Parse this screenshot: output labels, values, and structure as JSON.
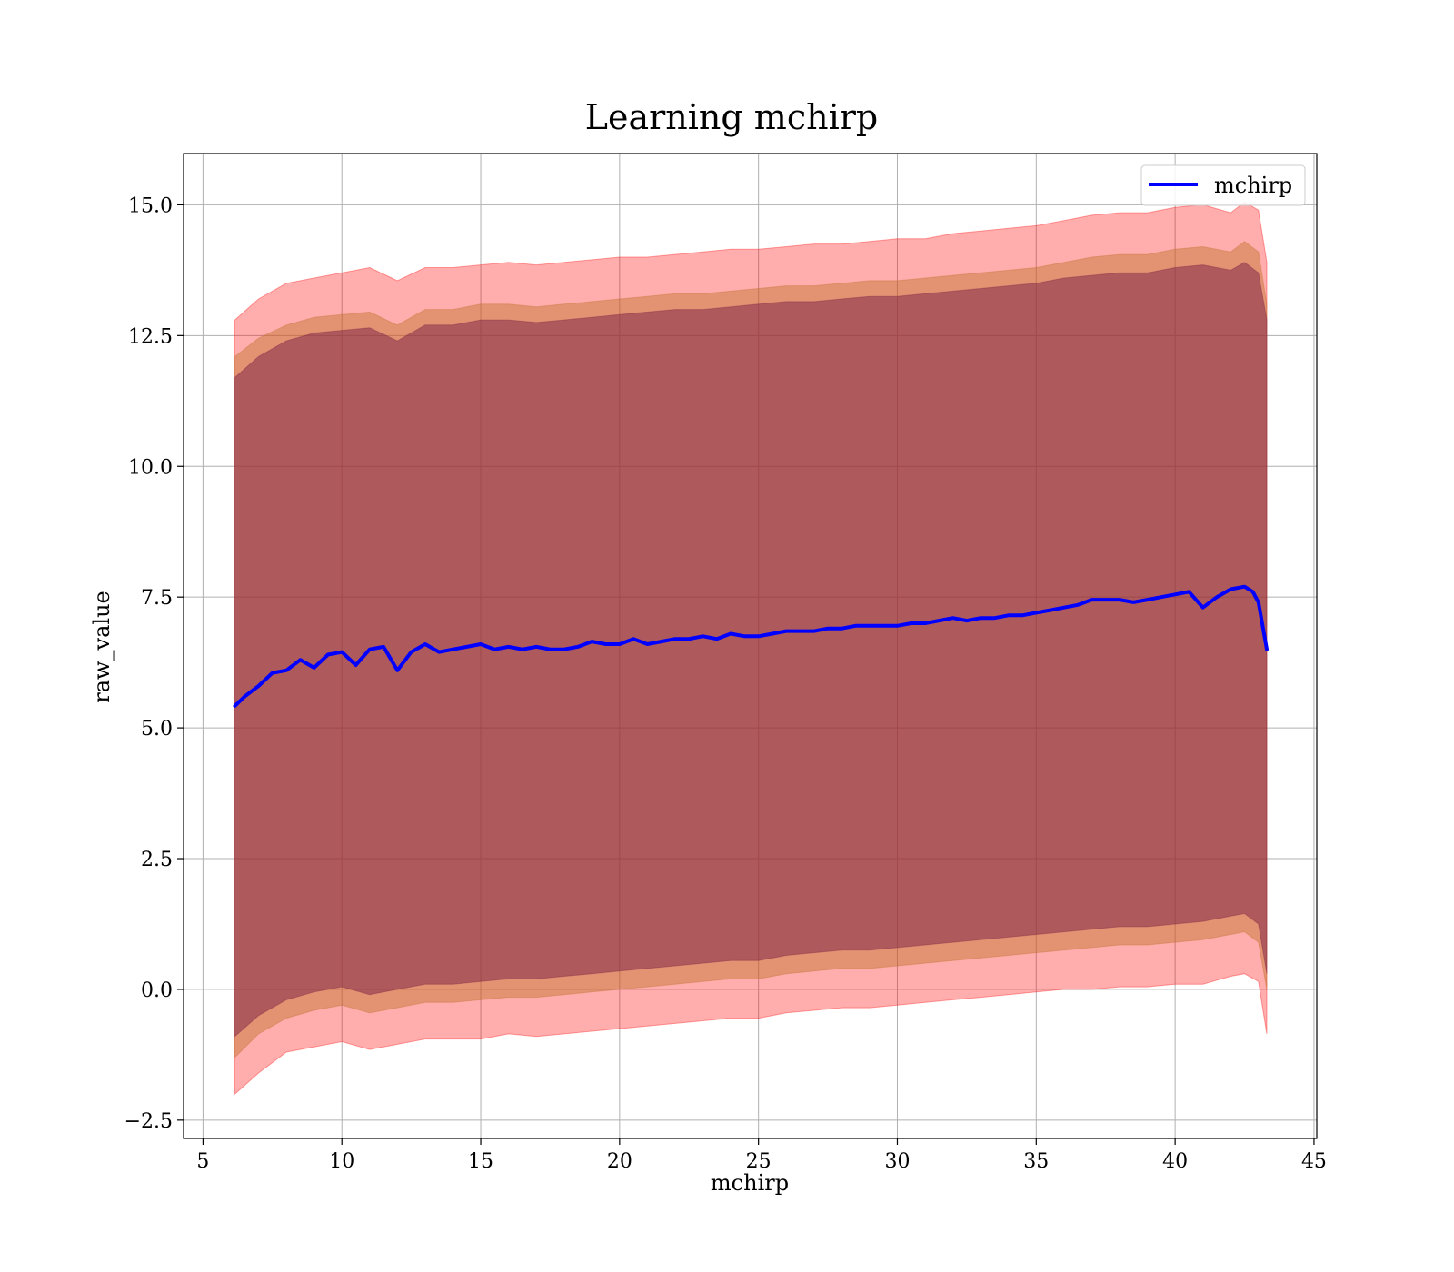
{
  "chart_data": {
    "type": "line",
    "title": "Learning mchirp",
    "xlabel": "mchirp",
    "ylabel": "raw_value",
    "xlim": [
      4.3,
      45.1
    ],
    "ylim": [
      -2.85,
      15.98
    ],
    "xticks": [
      5,
      10,
      15,
      20,
      25,
      30,
      35,
      40,
      45
    ],
    "yticks": [
      -2.5,
      0.0,
      2.5,
      5.0,
      7.5,
      10.0,
      12.5,
      15.0
    ],
    "xtick_labels": [
      "5",
      "10",
      "15",
      "20",
      "25",
      "30",
      "35",
      "40",
      "45"
    ],
    "ytick_labels": [
      "−2.5",
      "0.0",
      "2.5",
      "5.0",
      "7.5",
      "10.0",
      "12.5",
      "15.0"
    ],
    "grid": true,
    "legend": {
      "position": "top-right",
      "entries": [
        "mchirp"
      ]
    },
    "colors": {
      "line": "#0000ff",
      "band_outer": "#ff0000",
      "band_middle": "#c0702a",
      "band_inner": "#7a1f45",
      "grid": "#b0b0b0"
    },
    "series": [
      {
        "name": "mchirp",
        "x": [
          6.15,
          6.5,
          7.0,
          7.5,
          8.0,
          8.5,
          9.0,
          9.5,
          10.0,
          10.5,
          11.0,
          11.5,
          12.0,
          12.5,
          13.0,
          13.5,
          14.0,
          14.5,
          15.0,
          15.5,
          16.0,
          16.5,
          17.0,
          17.5,
          18.0,
          18.5,
          19.0,
          19.5,
          20.0,
          20.5,
          21.0,
          21.5,
          22.0,
          22.5,
          23.0,
          23.5,
          24.0,
          24.5,
          25.0,
          25.5,
          26.0,
          26.5,
          27.0,
          27.5,
          28.0,
          28.5,
          29.0,
          29.5,
          30.0,
          30.5,
          31.0,
          31.5,
          32.0,
          32.5,
          33.0,
          33.5,
          34.0,
          34.5,
          35.0,
          35.5,
          36.0,
          36.5,
          37.0,
          37.5,
          38.0,
          38.5,
          39.0,
          39.5,
          40.0,
          40.5,
          41.0,
          41.5,
          42.0,
          42.5,
          42.8,
          43.0,
          43.3
        ],
        "y": [
          5.42,
          5.6,
          5.8,
          6.05,
          6.1,
          6.3,
          6.15,
          6.4,
          6.45,
          6.2,
          6.5,
          6.55,
          6.1,
          6.45,
          6.6,
          6.45,
          6.5,
          6.55,
          6.6,
          6.5,
          6.55,
          6.5,
          6.55,
          6.5,
          6.5,
          6.55,
          6.65,
          6.6,
          6.6,
          6.7,
          6.6,
          6.65,
          6.7,
          6.7,
          6.75,
          6.7,
          6.8,
          6.75,
          6.75,
          6.8,
          6.85,
          6.85,
          6.85,
          6.9,
          6.9,
          6.95,
          6.95,
          6.95,
          6.95,
          7.0,
          7.0,
          7.05,
          7.1,
          7.05,
          7.1,
          7.1,
          7.15,
          7.15,
          7.2,
          7.25,
          7.3,
          7.35,
          7.45,
          7.45,
          7.45,
          7.4,
          7.45,
          7.5,
          7.55,
          7.6,
          7.3,
          7.5,
          7.65,
          7.7,
          7.6,
          7.4,
          6.5
        ]
      }
    ],
    "bands": [
      {
        "name": "outer",
        "x": [
          6.15,
          7.0,
          8.0,
          9.0,
          10.0,
          11.0,
          12.0,
          13.0,
          14.0,
          15.0,
          16.0,
          17.0,
          18.0,
          19.0,
          20.0,
          21.0,
          22.0,
          23.0,
          24.0,
          25.0,
          26.0,
          27.0,
          28.0,
          29.0,
          30.0,
          31.0,
          32.0,
          33.0,
          34.0,
          35.0,
          36.0,
          37.0,
          38.0,
          39.0,
          40.0,
          41.0,
          42.0,
          42.5,
          43.0,
          43.3
        ],
        "upper": [
          12.8,
          13.2,
          13.5,
          13.6,
          13.7,
          13.8,
          13.55,
          13.8,
          13.8,
          13.85,
          13.9,
          13.85,
          13.9,
          13.95,
          14.0,
          14.0,
          14.05,
          14.1,
          14.15,
          14.15,
          14.2,
          14.25,
          14.25,
          14.3,
          14.35,
          14.35,
          14.45,
          14.5,
          14.55,
          14.6,
          14.7,
          14.8,
          14.85,
          14.85,
          14.95,
          15.0,
          14.85,
          15.05,
          14.9,
          13.9
        ],
        "lower": [
          -2.0,
          -1.6,
          -1.2,
          -1.1,
          -1.0,
          -1.15,
          -1.05,
          -0.95,
          -0.95,
          -0.95,
          -0.85,
          -0.9,
          -0.85,
          -0.8,
          -0.75,
          -0.7,
          -0.65,
          -0.6,
          -0.55,
          -0.55,
          -0.45,
          -0.4,
          -0.35,
          -0.35,
          -0.3,
          -0.25,
          -0.2,
          -0.15,
          -0.1,
          -0.05,
          0.0,
          0.0,
          0.05,
          0.05,
          0.1,
          0.1,
          0.25,
          0.3,
          0.15,
          -0.85
        ]
      },
      {
        "name": "middle",
        "x": [
          6.15,
          7.0,
          8.0,
          9.0,
          10.0,
          11.0,
          12.0,
          13.0,
          14.0,
          15.0,
          16.0,
          17.0,
          18.0,
          19.0,
          20.0,
          21.0,
          22.0,
          23.0,
          24.0,
          25.0,
          26.0,
          27.0,
          28.0,
          29.0,
          30.0,
          31.0,
          32.0,
          33.0,
          34.0,
          35.0,
          36.0,
          37.0,
          38.0,
          39.0,
          40.0,
          41.0,
          42.0,
          42.5,
          43.0,
          43.3
        ],
        "upper": [
          12.1,
          12.45,
          12.7,
          12.85,
          12.9,
          12.95,
          12.7,
          13.0,
          13.0,
          13.1,
          13.1,
          13.05,
          13.1,
          13.15,
          13.2,
          13.25,
          13.3,
          13.3,
          13.35,
          13.4,
          13.45,
          13.45,
          13.5,
          13.55,
          13.55,
          13.6,
          13.65,
          13.7,
          13.75,
          13.8,
          13.9,
          14.0,
          14.05,
          14.05,
          14.15,
          14.2,
          14.1,
          14.3,
          14.1,
          13.1
        ],
        "lower": [
          -1.3,
          -0.85,
          -0.55,
          -0.4,
          -0.3,
          -0.45,
          -0.35,
          -0.25,
          -0.25,
          -0.2,
          -0.15,
          -0.15,
          -0.1,
          -0.05,
          0.0,
          0.05,
          0.1,
          0.15,
          0.2,
          0.2,
          0.3,
          0.35,
          0.4,
          0.4,
          0.45,
          0.5,
          0.55,
          0.6,
          0.65,
          0.7,
          0.75,
          0.8,
          0.85,
          0.85,
          0.9,
          0.95,
          1.05,
          1.1,
          0.9,
          0.0
        ]
      },
      {
        "name": "inner",
        "x": [
          6.15,
          7.0,
          8.0,
          9.0,
          10.0,
          11.0,
          12.0,
          13.0,
          14.0,
          15.0,
          16.0,
          17.0,
          18.0,
          19.0,
          20.0,
          21.0,
          22.0,
          23.0,
          24.0,
          25.0,
          26.0,
          27.0,
          28.0,
          29.0,
          30.0,
          31.0,
          32.0,
          33.0,
          34.0,
          35.0,
          36.0,
          37.0,
          38.0,
          39.0,
          40.0,
          41.0,
          42.0,
          42.5,
          43.0,
          43.3
        ],
        "upper": [
          11.7,
          12.1,
          12.4,
          12.55,
          12.6,
          12.65,
          12.4,
          12.7,
          12.7,
          12.8,
          12.8,
          12.75,
          12.8,
          12.85,
          12.9,
          12.95,
          13.0,
          13.0,
          13.05,
          13.1,
          13.15,
          13.15,
          13.2,
          13.25,
          13.25,
          13.3,
          13.35,
          13.4,
          13.45,
          13.5,
          13.6,
          13.65,
          13.7,
          13.7,
          13.8,
          13.85,
          13.75,
          13.9,
          13.7,
          12.8
        ],
        "lower": [
          -0.9,
          -0.5,
          -0.2,
          -0.05,
          0.05,
          -0.1,
          0.0,
          0.1,
          0.1,
          0.15,
          0.2,
          0.2,
          0.25,
          0.3,
          0.35,
          0.4,
          0.45,
          0.5,
          0.55,
          0.55,
          0.65,
          0.7,
          0.75,
          0.75,
          0.8,
          0.85,
          0.9,
          0.95,
          1.0,
          1.05,
          1.1,
          1.15,
          1.2,
          1.2,
          1.25,
          1.3,
          1.4,
          1.45,
          1.25,
          0.3
        ]
      }
    ]
  }
}
